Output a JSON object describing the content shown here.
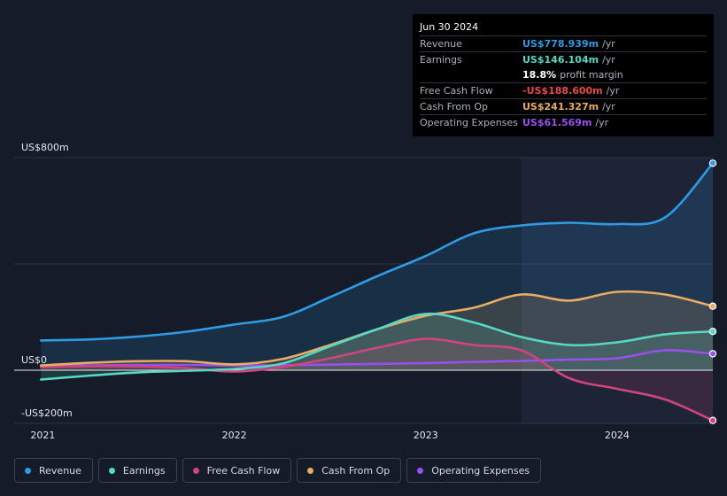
{
  "chart_data": {
    "type": "area",
    "title": "",
    "xlabel": "",
    "ylabel": "",
    "ylim": [
      -200,
      800
    ],
    "y_tick_labels": [
      {
        "value": 800,
        "label": "US$800m"
      },
      {
        "value": 0,
        "label": "US$0"
      },
      {
        "value": -200,
        "label": "-US$200m"
      }
    ],
    "x_ticks": [
      {
        "value": 2021.0,
        "label": "2021"
      },
      {
        "value": 2022.0,
        "label": "2022"
      },
      {
        "value": 2023.0,
        "label": "2023"
      },
      {
        "value": 2024.0,
        "label": "2024"
      }
    ],
    "xlim": [
      2020.85,
      2024.5
    ],
    "highlight_start": 2023.5,
    "series": [
      {
        "name": "Revenue",
        "color": "#2f9be5",
        "fill": true,
        "x": [
          2020.99,
          2021.25,
          2021.5,
          2021.75,
          2022.0,
          2022.25,
          2022.5,
          2022.75,
          2023.0,
          2023.25,
          2023.5,
          2023.75,
          2024.0,
          2024.25,
          2024.5
        ],
        "values": [
          112,
          116,
          127,
          145,
          172,
          200,
          275,
          355,
          430,
          515,
          545,
          555,
          550,
          575,
          779
        ]
      },
      {
        "name": "Earnings",
        "color": "#58d8c4",
        "fill": true,
        "x": [
          2020.99,
          2021.25,
          2021.5,
          2021.75,
          2022.0,
          2022.25,
          2022.5,
          2022.75,
          2023.0,
          2023.25,
          2023.5,
          2023.75,
          2024.0,
          2024.25,
          2024.5
        ],
        "values": [
          -35,
          -20,
          -8,
          -2,
          5,
          25,
          90,
          155,
          212,
          180,
          125,
          95,
          105,
          135,
          146
        ]
      },
      {
        "name": "Free Cash Flow",
        "color": "#d0457e",
        "fill": true,
        "x": [
          2020.99,
          2021.25,
          2021.5,
          2021.75,
          2022.0,
          2022.25,
          2022.5,
          2022.75,
          2023.0,
          2023.25,
          2023.5,
          2023.75,
          2024.0,
          2024.25,
          2024.5
        ],
        "values": [
          12,
          15,
          14,
          8,
          -5,
          12,
          45,
          85,
          118,
          95,
          75,
          -30,
          -70,
          -110,
          -189
        ]
      },
      {
        "name": "Cash From Op",
        "color": "#e8ad62",
        "fill": true,
        "x": [
          2020.99,
          2021.25,
          2021.5,
          2021.75,
          2022.0,
          2022.25,
          2022.5,
          2022.75,
          2023.0,
          2023.25,
          2023.5,
          2023.75,
          2024.0,
          2024.25,
          2024.5
        ],
        "values": [
          18,
          28,
          34,
          34,
          22,
          42,
          95,
          155,
          205,
          235,
          285,
          262,
          295,
          285,
          241
        ]
      },
      {
        "name": "Operating Expenses",
        "color": "#9a4ff0",
        "fill": false,
        "x": [
          2020.99,
          2021.25,
          2021.5,
          2021.75,
          2022.0,
          2022.25,
          2022.5,
          2022.75,
          2023.0,
          2023.25,
          2023.5,
          2023.75,
          2024.0,
          2024.25,
          2024.5
        ],
        "values": [
          15,
          18,
          20,
          20,
          18,
          19,
          21,
          24,
          27,
          31,
          35,
          40,
          45,
          75,
          62
        ]
      }
    ]
  },
  "tooltip": {
    "date": "Jun 30 2024",
    "rows": [
      {
        "label": "Revenue",
        "value": "US$778.939m",
        "unit": "/yr",
        "color": "#2f9be5"
      },
      {
        "label": "Earnings",
        "value": "US$146.104m",
        "unit": "/yr",
        "color": "#58d8c4"
      },
      {
        "label": "",
        "value": "18.8%",
        "unit": "profit margin",
        "color": "#ffffff"
      },
      {
        "label": "Free Cash Flow",
        "value": "-US$188.600m",
        "unit": "/yr",
        "color": "#e64b4b"
      },
      {
        "label": "Cash From Op",
        "value": "US$241.327m",
        "unit": "/yr",
        "color": "#e8ad62"
      },
      {
        "label": "Operating Expenses",
        "value": "US$61.569m",
        "unit": "/yr",
        "color": "#9a4ff0"
      }
    ]
  },
  "legend": [
    {
      "label": "Revenue",
      "color": "#2f9be5"
    },
    {
      "label": "Earnings",
      "color": "#58d8c4"
    },
    {
      "label": "Free Cash Flow",
      "color": "#d0457e"
    },
    {
      "label": "Cash From Op",
      "color": "#e8ad62"
    },
    {
      "label": "Operating Expenses",
      "color": "#9a4ff0"
    }
  ]
}
